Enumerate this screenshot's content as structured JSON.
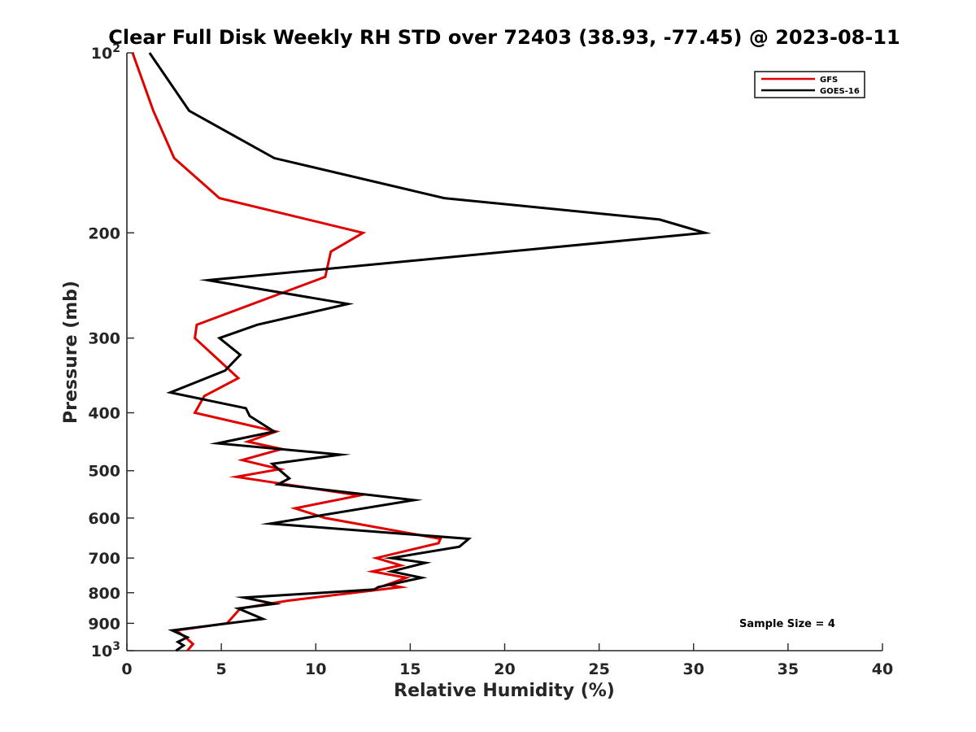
{
  "chart_data": {
    "type": "line",
    "title": "Clear Full Disk Weekly RH STD over 72403 (38.93, -77.45) @ 2023-08-11",
    "xlabel": "Relative Humidity (%)",
    "ylabel": "Pressure (mb)",
    "xlim": [
      0,
      40
    ],
    "ylim": [
      100,
      1000
    ],
    "y_scale": "log",
    "y_reversed": true,
    "x_ticks": [
      "0",
      "5",
      "10",
      "15",
      "20",
      "25",
      "30",
      "35",
      "40"
    ],
    "y_ticks": [
      {
        "value": 100,
        "label": "10",
        "sup": "2"
      },
      {
        "value": 200,
        "label": "200"
      },
      {
        "value": 300,
        "label": "300"
      },
      {
        "value": 400,
        "label": "400"
      },
      {
        "value": 500,
        "label": "500"
      },
      {
        "value": 600,
        "label": "600"
      },
      {
        "value": 700,
        "label": "700"
      },
      {
        "value": 800,
        "label": "800"
      },
      {
        "value": 900,
        "label": "900"
      },
      {
        "value": 1000,
        "label": "10",
        "sup": "3"
      }
    ],
    "legend_position": "top-right",
    "grid": false,
    "annotation": "Sample Size = 4",
    "series": [
      {
        "name": "GFS",
        "color": "#e00000",
        "points": [
          {
            "x": 0.3,
            "y": 100
          },
          {
            "x": 1.4,
            "y": 125
          },
          {
            "x": 2.5,
            "y": 150
          },
          {
            "x": 4.9,
            "y": 175
          },
          {
            "x": 12.5,
            "y": 200
          },
          {
            "x": 10.8,
            "y": 215
          },
          {
            "x": 10.5,
            "y": 237
          },
          {
            "x": 3.7,
            "y": 285
          },
          {
            "x": 3.6,
            "y": 300
          },
          {
            "x": 5.9,
            "y": 350
          },
          {
            "x": 4.1,
            "y": 375
          },
          {
            "x": 3.6,
            "y": 400
          },
          {
            "x": 7.9,
            "y": 430
          },
          {
            "x": 6.4,
            "y": 447
          },
          {
            "x": 8.2,
            "y": 460
          },
          {
            "x": 6.1,
            "y": 480
          },
          {
            "x": 8.1,
            "y": 497
          },
          {
            "x": 5.8,
            "y": 512
          },
          {
            "x": 12.3,
            "y": 550
          },
          {
            "x": 8.9,
            "y": 578
          },
          {
            "x": 10.5,
            "y": 600
          },
          {
            "x": 16.6,
            "y": 650
          },
          {
            "x": 16.5,
            "y": 661
          },
          {
            "x": 13.2,
            "y": 700
          },
          {
            "x": 14.5,
            "y": 720
          },
          {
            "x": 13.0,
            "y": 737
          },
          {
            "x": 14.8,
            "y": 755
          },
          {
            "x": 13.8,
            "y": 775
          },
          {
            "x": 14.5,
            "y": 783
          },
          {
            "x": 8.5,
            "y": 825
          },
          {
            "x": 6.0,
            "y": 850
          },
          {
            "x": 5.3,
            "y": 900
          },
          {
            "x": 2.6,
            "y": 925
          },
          {
            "x": 3.1,
            "y": 950
          },
          {
            "x": 3.5,
            "y": 975
          },
          {
            "x": 3.2,
            "y": 1000
          }
        ]
      },
      {
        "name": "GOES-16",
        "color": "#000000",
        "points": [
          {
            "x": 1.2,
            "y": 100
          },
          {
            "x": 3.3,
            "y": 125
          },
          {
            "x": 7.8,
            "y": 150
          },
          {
            "x": 16.8,
            "y": 175
          },
          {
            "x": 28.2,
            "y": 190
          },
          {
            "x": 30.6,
            "y": 200
          },
          {
            "x": 4.3,
            "y": 240
          },
          {
            "x": 11.7,
            "y": 263
          },
          {
            "x": 6.9,
            "y": 285
          },
          {
            "x": 4.9,
            "y": 300
          },
          {
            "x": 6.0,
            "y": 320
          },
          {
            "x": 5.2,
            "y": 340
          },
          {
            "x": 2.3,
            "y": 370
          },
          {
            "x": 6.3,
            "y": 393
          },
          {
            "x": 6.5,
            "y": 405
          },
          {
            "x": 7.8,
            "y": 430
          },
          {
            "x": 4.8,
            "y": 450
          },
          {
            "x": 11.3,
            "y": 470
          },
          {
            "x": 7.7,
            "y": 487
          },
          {
            "x": 8.6,
            "y": 515
          },
          {
            "x": 8.0,
            "y": 527
          },
          {
            "x": 15.2,
            "y": 560
          },
          {
            "x": 7.6,
            "y": 613
          },
          {
            "x": 18.1,
            "y": 650
          },
          {
            "x": 17.6,
            "y": 670
          },
          {
            "x": 14.0,
            "y": 700
          },
          {
            "x": 15.8,
            "y": 713
          },
          {
            "x": 14.0,
            "y": 737
          },
          {
            "x": 15.6,
            "y": 755
          },
          {
            "x": 13.3,
            "y": 783
          },
          {
            "x": 13.1,
            "y": 790
          },
          {
            "x": 6.2,
            "y": 815
          },
          {
            "x": 7.8,
            "y": 835
          },
          {
            "x": 5.9,
            "y": 850
          },
          {
            "x": 7.2,
            "y": 885
          },
          {
            "x": 2.4,
            "y": 925
          },
          {
            "x": 3.2,
            "y": 950
          },
          {
            "x": 2.7,
            "y": 967
          },
          {
            "x": 3.0,
            "y": 980
          },
          {
            "x": 2.6,
            "y": 1000
          }
        ]
      }
    ]
  }
}
